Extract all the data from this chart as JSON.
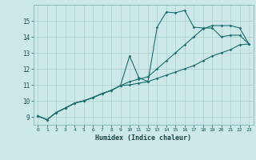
{
  "xlabel": "Humidex (Indice chaleur)",
  "ylabel": "",
  "bg_color": "#cce8e8",
  "grid_color": "#aacece",
  "line_color": "#1a6e6e",
  "xlim": [
    -0.5,
    23.5
  ],
  "ylim": [
    8.5,
    16.0
  ],
  "xticks": [
    0,
    1,
    2,
    3,
    4,
    5,
    6,
    7,
    8,
    9,
    10,
    11,
    12,
    13,
    14,
    15,
    16,
    17,
    18,
    19,
    20,
    21,
    22,
    23
  ],
  "yticks": [
    9,
    10,
    11,
    12,
    13,
    14,
    15
  ],
  "lines": [
    {
      "x": [
        0,
        1,
        2,
        3,
        4,
        5,
        6,
        7,
        8,
        9,
        10,
        11,
        12,
        13,
        14,
        15,
        16,
        17,
        18,
        19,
        20,
        21,
        22,
        23
      ],
      "y": [
        9.05,
        8.82,
        9.27,
        9.55,
        9.85,
        10.0,
        10.2,
        10.45,
        10.65,
        10.95,
        12.8,
        11.45,
        11.2,
        14.6,
        15.55,
        15.5,
        15.65,
        14.6,
        14.55,
        14.55,
        14.0,
        14.1,
        14.1,
        13.55
      ]
    },
    {
      "x": [
        0,
        1,
        2,
        3,
        4,
        5,
        6,
        7,
        8,
        9,
        10,
        11,
        12,
        13,
        14,
        15,
        16,
        17,
        18,
        19,
        20,
        21,
        22,
        23
      ],
      "y": [
        9.05,
        8.82,
        9.27,
        9.55,
        9.85,
        10.0,
        10.2,
        10.45,
        10.65,
        10.95,
        11.2,
        11.35,
        11.5,
        12.0,
        12.5,
        13.0,
        13.5,
        14.0,
        14.5,
        14.7,
        14.7,
        14.7,
        14.55,
        13.55
      ]
    },
    {
      "x": [
        0,
        1,
        2,
        3,
        4,
        5,
        6,
        7,
        8,
        9,
        10,
        11,
        12,
        13,
        14,
        15,
        16,
        17,
        18,
        19,
        20,
        21,
        22,
        23
      ],
      "y": [
        9.05,
        8.82,
        9.27,
        9.55,
        9.85,
        10.0,
        10.2,
        10.45,
        10.65,
        10.95,
        11.0,
        11.1,
        11.2,
        11.4,
        11.6,
        11.8,
        12.0,
        12.2,
        12.5,
        12.8,
        13.0,
        13.2,
        13.5,
        13.55
      ]
    }
  ]
}
